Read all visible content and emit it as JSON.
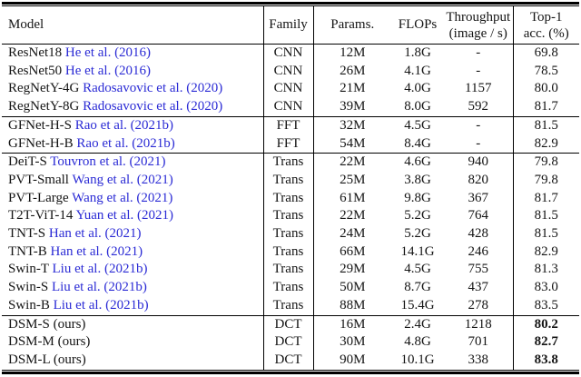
{
  "colors": {
    "citation_blue": "#2b2bd5",
    "rule_black": "#000000",
    "text": "#141414"
  },
  "header": {
    "model": "Model",
    "family": "Family",
    "params": "Params.",
    "flops": "FLOPs",
    "throughput": [
      "Throughput",
      "(image / s)"
    ],
    "top1": [
      "Top-1",
      "acc. (%)"
    ]
  },
  "groups": [
    {
      "family_label": "CNN",
      "rows": [
        {
          "model": "ResNet18",
          "cite": "He et al. (2016)",
          "family": "CNN",
          "params": "12M",
          "flops": "1.8G",
          "throughput": "-",
          "top1": "69.8",
          "bold_top1": false
        },
        {
          "model": "ResNet50",
          "cite": "He et al. (2016)",
          "family": "CNN",
          "params": "26M",
          "flops": "4.1G",
          "throughput": "-",
          "top1": "78.5",
          "bold_top1": false
        },
        {
          "model": "RegNetY-4G",
          "cite": "Radosavovic et al. (2020)",
          "family": "CNN",
          "params": "21M",
          "flops": "4.0G",
          "throughput": "1157",
          "top1": "80.0",
          "bold_top1": false
        },
        {
          "model": "RegNetY-8G",
          "cite": "Radosavovic et al. (2020)",
          "family": "CNN",
          "params": "39M",
          "flops": "8.0G",
          "throughput": "592",
          "top1": "81.7",
          "bold_top1": false
        }
      ]
    },
    {
      "family_label": "FFT",
      "rows": [
        {
          "model": "GFNet-H-S",
          "cite": "Rao et al. (2021b)",
          "family": "FFT",
          "params": "32M",
          "flops": "4.5G",
          "throughput": "-",
          "top1": "81.5",
          "bold_top1": false
        },
        {
          "model": "GFNet-H-B",
          "cite": "Rao et al. (2021b)",
          "family": "FFT",
          "params": "54M",
          "flops": "8.4G",
          "throughput": "-",
          "top1": "82.9",
          "bold_top1": false
        }
      ]
    },
    {
      "family_label": "Trans",
      "rows": [
        {
          "model": "DeiT-S",
          "cite": "Touvron et al. (2021)",
          "family": "Trans",
          "params": "22M",
          "flops": "4.6G",
          "throughput": "940",
          "top1": "79.8",
          "bold_top1": false
        },
        {
          "model": "PVT-Small",
          "cite": "Wang et al. (2021)",
          "family": "Trans",
          "params": "25M",
          "flops": "3.8G",
          "throughput": "820",
          "top1": "79.8",
          "bold_top1": false
        },
        {
          "model": "PVT-Large",
          "cite": "Wang et al. (2021)",
          "family": "Trans",
          "params": "61M",
          "flops": "9.8G",
          "throughput": "367",
          "top1": "81.7",
          "bold_top1": false
        },
        {
          "model": "T2T-ViT-14",
          "cite": "Yuan et al. (2021)",
          "family": "Trans",
          "params": "22M",
          "flops": "5.2G",
          "throughput": "764",
          "top1": "81.5",
          "bold_top1": false
        },
        {
          "model": "TNT-S",
          "cite": "Han et al. (2021)",
          "family": "Trans",
          "params": "24M",
          "flops": "5.2G",
          "throughput": "428",
          "top1": "81.5",
          "bold_top1": false
        },
        {
          "model": "TNT-B",
          "cite": "Han et al. (2021)",
          "family": "Trans",
          "params": "66M",
          "flops": "14.1G",
          "throughput": "246",
          "top1": "82.9",
          "bold_top1": false
        },
        {
          "model": "Swin-T",
          "cite": "Liu et al. (2021b)",
          "family": "Trans",
          "params": "29M",
          "flops": "4.5G",
          "throughput": "755",
          "top1": "81.3",
          "bold_top1": false
        },
        {
          "model": "Swin-S",
          "cite": "Liu et al. (2021b)",
          "family": "Trans",
          "params": "50M",
          "flops": "8.7G",
          "throughput": "437",
          "top1": "83.0",
          "bold_top1": false
        },
        {
          "model": "Swin-B",
          "cite": "Liu et al. (2021b)",
          "family": "Trans",
          "params": "88M",
          "flops": "15.4G",
          "throughput": "278",
          "top1": "83.5",
          "bold_top1": false
        }
      ]
    },
    {
      "family_label": "DCT",
      "rows": [
        {
          "model": "DSM-S (ours)",
          "cite": "",
          "family": "DCT",
          "params": "16M",
          "flops": "2.4G",
          "throughput": "1218",
          "top1": "80.2",
          "bold_top1": true
        },
        {
          "model": "DSM-M (ours)",
          "cite": "",
          "family": "DCT",
          "params": "30M",
          "flops": "4.8G",
          "throughput": "701",
          "top1": "82.7",
          "bold_top1": true
        },
        {
          "model": "DSM-L (ours)",
          "cite": "",
          "family": "DCT",
          "params": "90M",
          "flops": "10.1G",
          "throughput": "338",
          "top1": "83.8",
          "bold_top1": true
        }
      ]
    }
  ]
}
